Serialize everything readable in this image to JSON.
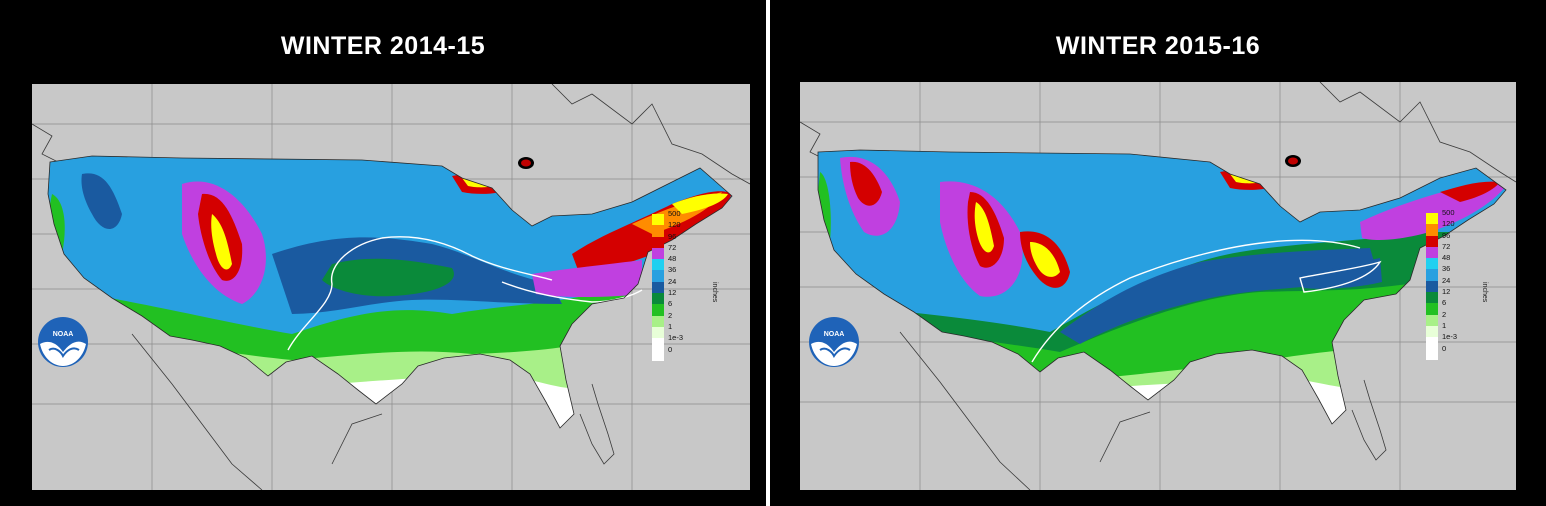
{
  "panels": [
    {
      "title": "WINTER 2014-15",
      "legend_unit": "inches",
      "legend": [
        {
          "label": "500",
          "color": "#ffff00"
        },
        {
          "label": "120",
          "color": "#ff8c00"
        },
        {
          "label": "96",
          "color": "#d40000"
        },
        {
          "label": "72",
          "color": "#c040e0"
        },
        {
          "label": "48",
          "color": "#20d0f0"
        },
        {
          "label": "36",
          "color": "#28a0e0"
        },
        {
          "label": "24",
          "color": "#1a5aa0"
        },
        {
          "label": "12",
          "color": "#0a8a3a"
        },
        {
          "label": "6",
          "color": "#22c022"
        },
        {
          "label": "2",
          "color": "#a8f088"
        },
        {
          "label": "1",
          "color": "#e8ffd8"
        },
        {
          "label": "1e-3",
          "color": "#ffffff"
        },
        {
          "label": "0",
          "color": "#ffffff"
        }
      ],
      "logo_text": "NOAA",
      "marker_color": "#c00000"
    },
    {
      "title": "WINTER 2015-16",
      "legend_unit": "inches",
      "legend": [
        {
          "label": "500",
          "color": "#ffff00"
        },
        {
          "label": "120",
          "color": "#ff8c00"
        },
        {
          "label": "96",
          "color": "#d40000"
        },
        {
          "label": "72",
          "color": "#c040e0"
        },
        {
          "label": "48",
          "color": "#20d0f0"
        },
        {
          "label": "36",
          "color": "#28a0e0"
        },
        {
          "label": "24",
          "color": "#1a5aa0"
        },
        {
          "label": "12",
          "color": "#0a8a3a"
        },
        {
          "label": "6",
          "color": "#22c022"
        },
        {
          "label": "2",
          "color": "#a8f088"
        },
        {
          "label": "1",
          "color": "#e8ffd8"
        },
        {
          "label": "1e-3",
          "color": "#ffffff"
        },
        {
          "label": "0",
          "color": "#ffffff"
        }
      ],
      "logo_text": "NOAA",
      "marker_color": "#c00000"
    }
  ]
}
